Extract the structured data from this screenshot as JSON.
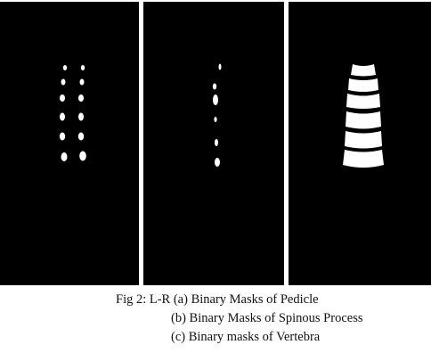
{
  "figure": {
    "panels": [
      {
        "id": "a",
        "content": "binary-mask-pedicle"
      },
      {
        "id": "b",
        "content": "binary-mask-spinous-process"
      },
      {
        "id": "c",
        "content": "binary-mask-vertebra"
      }
    ],
    "colors": {
      "background": "#000000",
      "mask": "#ffffff"
    }
  },
  "caption": {
    "line1": "Fig 2: L-R (a) Binary Masks of Pedicle",
    "line2": "(b) Binary Masks of Spinous Process",
    "line3": "(c) Binary masks of Vertebra"
  }
}
